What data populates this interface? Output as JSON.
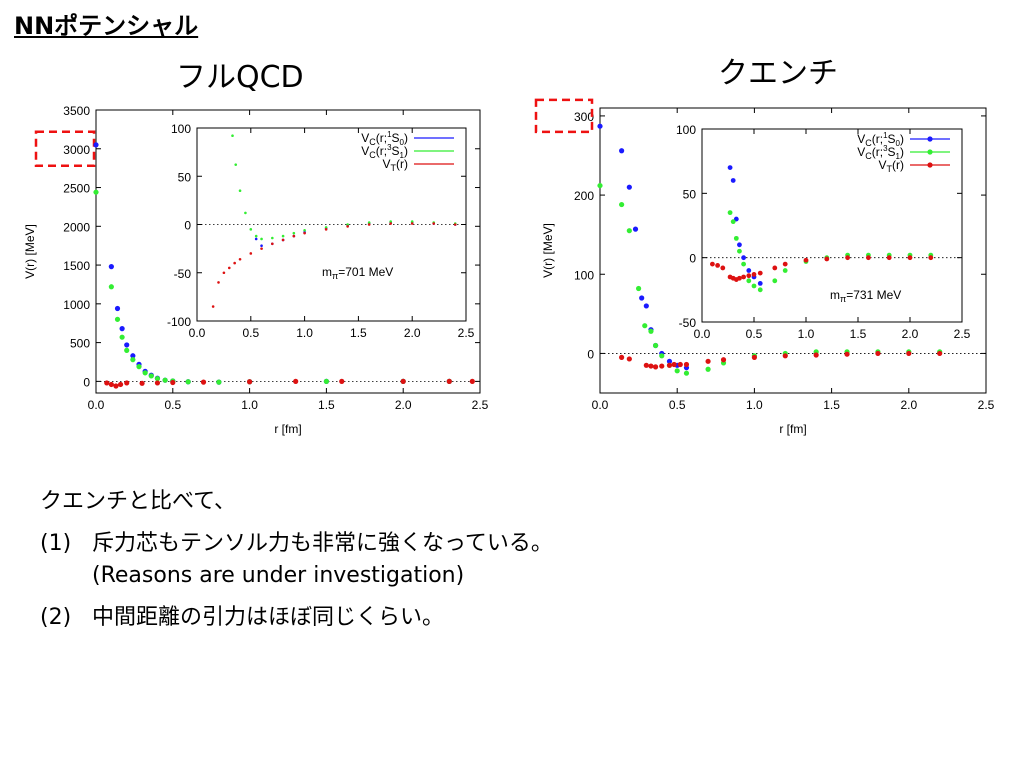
{
  "slide": {
    "title": "NNポテンシャル",
    "left_heading": "フルQCD",
    "right_heading": "クエンチ",
    "intro": "クエンチと比べて、",
    "items": [
      {
        "num": "(1)",
        "text": "斥力芯もテンソル力も非常に強くなっている。",
        "sub": "(Reasons are under investigation)"
      },
      {
        "num": "(2)",
        "text": "中間距離の引力はほぼ同じくらい。",
        "sub": ""
      }
    ]
  },
  "chart_data": [
    {
      "type": "scatter",
      "name": "full-qcd",
      "xlabel": "r [fm]",
      "ylabel": "V(r) [MeV]",
      "xlim": [
        0,
        2.5
      ],
      "ylim": [
        -150,
        3500
      ],
      "x_ticks": [
        "0.0",
        "0.5",
        "1.0",
        "1.5",
        "2.0",
        "2.5"
      ],
      "y_ticks": [
        "0",
        "500",
        "1000",
        "1500",
        "2000",
        "2500",
        "3000",
        "3500"
      ],
      "highlight_tick": "3000",
      "colors": {
        "singlet": "#1a1aff",
        "triplet": "#33ee33",
        "tensor": "#dd1111",
        "highlight": "#ee1111"
      },
      "series": [
        {
          "key": "singlet",
          "x": [
            0.0,
            0.1,
            0.14,
            0.17,
            0.2,
            0.24,
            0.28,
            0.32,
            0.36,
            0.4,
            0.45,
            0.5,
            0.6,
            0.8,
            1.0,
            1.5,
            2.0,
            2.3
          ],
          "y": [
            3050,
            1480,
            940,
            680,
            470,
            330,
            220,
            130,
            80,
            40,
            15,
            5,
            -5,
            -10,
            -5,
            0,
            0,
            0
          ]
        },
        {
          "key": "triplet",
          "x": [
            0.0,
            0.1,
            0.14,
            0.17,
            0.2,
            0.24,
            0.28,
            0.32,
            0.36,
            0.4,
            0.45,
            0.5,
            0.6,
            0.8,
            1.0,
            1.5,
            2.0,
            2.3
          ],
          "y": [
            2440,
            1220,
            800,
            570,
            400,
            280,
            190,
            110,
            70,
            35,
            15,
            5,
            -5,
            -10,
            -5,
            0,
            0,
            0
          ]
        },
        {
          "key": "tensor",
          "x": [
            0.07,
            0.1,
            0.13,
            0.16,
            0.2,
            0.3,
            0.4,
            0.5,
            0.7,
            1.0,
            1.3,
            1.6,
            2.0,
            2.3,
            2.45
          ],
          "y": [
            -20,
            -40,
            -60,
            -40,
            -20,
            -25,
            -20,
            -15,
            -10,
            -5,
            0,
            0,
            0,
            0,
            0
          ]
        }
      ],
      "inset": {
        "xlim": [
          0,
          2.5
        ],
        "ylim": [
          -100,
          100
        ],
        "x_ticks": [
          "0.0",
          "0.5",
          "1.0",
          "1.5",
          "2.0",
          "2.5"
        ],
        "y_ticks": [
          "-100",
          "-50",
          "0",
          "50",
          "100"
        ],
        "annotation": "mπ=701 MeV",
        "legend": [
          "VC(r;1S0)",
          "VC(r;3S1)",
          "VT(r)"
        ],
        "series": [
          {
            "key": "singlet",
            "x": [
              0.55,
              0.6,
              0.7,
              0.8,
              0.9,
              1.0,
              1.2,
              1.4,
              1.6,
              1.8,
              2.0,
              2.2,
              2.4
            ],
            "y": [
              -15,
              -22,
              -20,
              -16,
              -12,
              -8,
              -4,
              -1,
              1,
              2,
              2,
              1,
              0
            ]
          },
          {
            "key": "triplet",
            "x": [
              0.33,
              0.36,
              0.4,
              0.45,
              0.5,
              0.55,
              0.6,
              0.7,
              0.8,
              0.9,
              1.0,
              1.2,
              1.4,
              1.6,
              1.8,
              2.0,
              2.2,
              2.4
            ],
            "y": [
              92,
              62,
              35,
              12,
              -5,
              -12,
              -15,
              -14,
              -12,
              -9,
              -6,
              -3,
              0,
              2,
              3,
              3,
              2,
              1
            ]
          },
          {
            "key": "tensor",
            "x": [
              0.15,
              0.2,
              0.25,
              0.3,
              0.35,
              0.4,
              0.5,
              0.6,
              0.7,
              0.8,
              0.9,
              1.0,
              1.2,
              1.4,
              1.6,
              1.8,
              2.0,
              2.2,
              2.4
            ],
            "y": [
              -85,
              -60,
              -50,
              -45,
              -40,
              -36,
              -30,
              -25,
              -20,
              -16,
              -12,
              -9,
              -5,
              -2,
              0,
              1,
              1,
              1,
              0
            ]
          }
        ]
      }
    },
    {
      "type": "scatter",
      "name": "quenched",
      "xlabel": "r [fm]",
      "ylabel": "V(r) [MeV]",
      "xlim": [
        0,
        2.5
      ],
      "ylim": [
        -50,
        310
      ],
      "x_ticks": [
        "0.0",
        "0.5",
        "1.0",
        "1.5",
        "2.0",
        "2.5"
      ],
      "y_ticks": [
        "0",
        "100",
        "200",
        "300"
      ],
      "highlight_tick": "300",
      "colors": {
        "singlet": "#1a1aff",
        "triplet": "#33ee33",
        "tensor": "#dd1111",
        "highlight": "#ee1111"
      },
      "series": [
        {
          "key": "singlet",
          "x": [
            0.0,
            0.14,
            0.19,
            0.23,
            0.27,
            0.3,
            0.33,
            0.36,
            0.4,
            0.45,
            0.5,
            0.56
          ],
          "y": [
            287,
            256,
            210,
            157,
            70,
            60,
            30,
            10,
            0,
            -10,
            -15,
            -18
          ]
        },
        {
          "key": "triplet",
          "x": [
            0.0,
            0.14,
            0.19,
            0.25,
            0.29,
            0.33,
            0.36,
            0.4,
            0.45,
            0.5,
            0.56,
            0.7,
            0.8,
            1.0,
            1.2,
            1.4,
            1.6,
            1.8,
            2.0,
            2.2
          ],
          "y": [
            212,
            188,
            155,
            82,
            35,
            28,
            10,
            -3,
            -15,
            -22,
            -25,
            -20,
            -12,
            -3,
            0,
            2,
            2,
            2,
            2,
            2
          ]
        },
        {
          "key": "tensor",
          "x": [
            0.14,
            0.19,
            0.3,
            0.33,
            0.36,
            0.4,
            0.45,
            0.48,
            0.52,
            0.56,
            0.7,
            0.8,
            1.0,
            1.2,
            1.4,
            1.6,
            1.8,
            2.0,
            2.2
          ],
          "y": [
            -5,
            -7,
            -15,
            -16,
            -17,
            -16,
            -15,
            -14,
            -14,
            -14,
            -10,
            -8,
            -5,
            -3,
            -2,
            -1,
            0,
            0,
            0
          ]
        }
      ],
      "inset": {
        "xlim": [
          0,
          2.5
        ],
        "ylim": [
          -50,
          100
        ],
        "x_ticks": [
          "0.0",
          "0.5",
          "1.0",
          "1.5",
          "2.0",
          "2.5"
        ],
        "y_ticks": [
          "-50",
          "0",
          "50",
          "100"
        ],
        "annotation": "mπ=731 MeV",
        "legend": [
          "VC(r;1S0)",
          "VC(r;3S1)",
          "VT(r)"
        ],
        "series": [
          {
            "key": "singlet",
            "x": [
              0.27,
              0.3,
              0.33,
              0.36,
              0.4,
              0.45,
              0.5,
              0.56
            ],
            "y": [
              70,
              60,
              30,
              10,
              0,
              -10,
              -15,
              -20
            ]
          },
          {
            "key": "triplet",
            "x": [
              0.27,
              0.3,
              0.33,
              0.36,
              0.4,
              0.45,
              0.5,
              0.56,
              0.7,
              0.8,
              1.0,
              1.2,
              1.4,
              1.6,
              1.8,
              2.0,
              2.2
            ],
            "y": [
              35,
              28,
              15,
              5,
              -5,
              -18,
              -22,
              -25,
              -18,
              -10,
              -3,
              0,
              2,
              2,
              2,
              2,
              2
            ]
          },
          {
            "key": "tensor",
            "x": [
              0.1,
              0.15,
              0.2,
              0.27,
              0.3,
              0.33,
              0.36,
              0.4,
              0.45,
              0.5,
              0.56,
              0.7,
              0.8,
              1.0,
              1.2,
              1.4,
              1.6,
              1.8,
              2.0,
              2.2
            ],
            "y": [
              -5,
              -6,
              -8,
              -15,
              -16,
              -17,
              -16,
              -15,
              -14,
              -13,
              -12,
              -8,
              -5,
              -2,
              -1,
              0,
              0,
              0,
              0,
              0
            ]
          }
        ]
      }
    }
  ]
}
